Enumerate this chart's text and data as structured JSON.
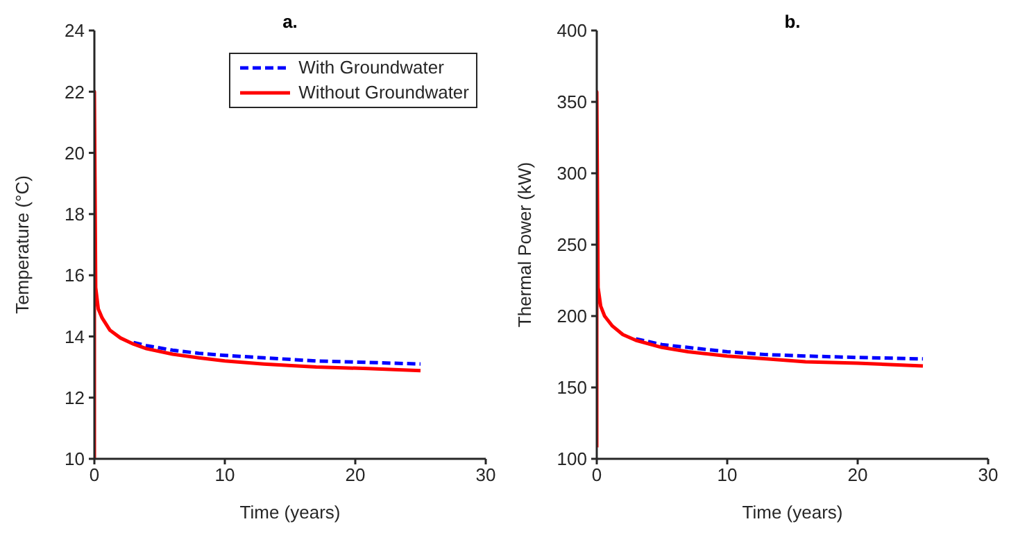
{
  "chart_data": [
    {
      "type": "line",
      "title": "a.",
      "xlabel": "Time (years)",
      "ylabel": "Temperature (°C)",
      "xlim": [
        0,
        30
      ],
      "xticks": [
        0,
        10,
        20,
        30
      ],
      "ylim": [
        10,
        24
      ],
      "yticks": [
        10,
        12,
        14,
        16,
        18,
        20,
        22,
        24
      ],
      "grid": false,
      "legend": "top right",
      "series": [
        {
          "name": "With Groundwater",
          "color": "#0000ff",
          "line_style": "dashed",
          "x": [
            3,
            4,
            6,
            8,
            10,
            13,
            17,
            21,
            25
          ],
          "values": [
            13.8,
            13.7,
            13.55,
            13.45,
            13.38,
            13.3,
            13.2,
            13.15,
            13.1
          ]
        },
        {
          "name": "Without Groundwater",
          "color": "#ff0000",
          "line_style": "solid",
          "x": [
            0,
            0,
            0.1,
            0.3,
            0.6,
            1.2,
            2,
            3,
            4,
            6,
            8,
            10,
            13,
            17,
            21,
            25
          ],
          "values": [
            10,
            22,
            15.6,
            14.9,
            14.6,
            14.2,
            13.95,
            13.75,
            13.6,
            13.42,
            13.3,
            13.2,
            13.1,
            13.0,
            12.95,
            12.88
          ]
        }
      ]
    },
    {
      "type": "line",
      "title": "b.",
      "xlabel": "Time (years)",
      "ylabel": "Thermal Power (kW)",
      "xlim": [
        0,
        30
      ],
      "xticks": [
        0,
        10,
        20,
        30
      ],
      "ylim": [
        100,
        400
      ],
      "yticks": [
        100,
        150,
        200,
        250,
        300,
        350,
        400
      ],
      "grid": false,
      "legend": false,
      "series": [
        {
          "color": "#0000ff",
          "line_style": "dashed",
          "x": [
            3,
            5,
            7,
            10,
            13,
            16,
            20,
            25
          ],
          "values": [
            184,
            180,
            178,
            175,
            173,
            172,
            171,
            170
          ]
        },
        {
          "color": "#ff0000",
          "line_style": "solid",
          "x": [
            0,
            0,
            0.1,
            0.3,
            0.6,
            1.2,
            2,
            3,
            5,
            7,
            10,
            13,
            16,
            20,
            25
          ],
          "values": [
            108,
            357,
            220,
            207,
            200,
            193,
            187,
            183,
            178,
            175,
            172,
            170,
            168,
            167,
            165
          ]
        }
      ]
    }
  ]
}
